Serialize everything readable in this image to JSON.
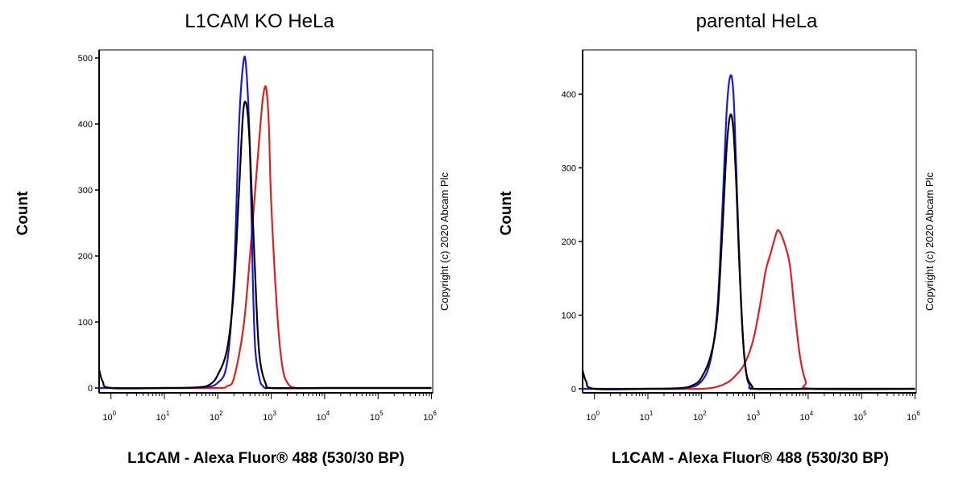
{
  "chart_data": [
    {
      "type": "line",
      "title": "L1CAM KO HeLa",
      "xlabel": "L1CAM - Alexa Fluor® 488 (530/30 BP)",
      "ylabel": "Count",
      "x_scale": "log",
      "xlim": [
        0.6,
        1000000
      ],
      "ylim": [
        0,
        520
      ],
      "xtick_labels": [
        "10^0",
        "10^1",
        "10^2",
        "10^3",
        "10^4",
        "10^5",
        "10^6"
      ],
      "ytick_labels": [
        "0",
        "100",
        "200",
        "300",
        "400",
        "500"
      ],
      "copyright": "Copyright (c) 2020 Abcam Plc",
      "colors": {
        "blue": "#1a1ad6",
        "black": "#000000",
        "red": "#e02020"
      },
      "series": [
        {
          "color": "#1a1ad6",
          "x": [
            0.6,
            10,
            50,
            100,
            150,
            200,
            250,
            300,
            340,
            400,
            450,
            500,
            600,
            700,
            1000,
            10000,
            1000000
          ],
          "y": [
            0,
            0,
            1,
            8,
            40,
            170,
            400,
            492,
            485,
            360,
            170,
            60,
            15,
            3,
            0,
            0,
            0
          ]
        },
        {
          "color": "#000000",
          "x": [
            0.6,
            0.7,
            1,
            10,
            40,
            70,
            100,
            150,
            200,
            250,
            300,
            350,
            400,
            500,
            600,
            800,
            1000,
            10000,
            1000000
          ],
          "y": [
            28,
            10,
            0,
            0,
            1,
            5,
            20,
            60,
            150,
            300,
            420,
            425,
            360,
            170,
            50,
            5,
            0,
            0,
            0
          ]
        },
        {
          "color": "#e02020",
          "x": [
            0.6,
            10,
            100,
            150,
            200,
            300,
            400,
            500,
            600,
            700,
            800,
            900,
            1000,
            1300,
            1600,
            2000,
            3000,
            10000,
            1000000
          ],
          "y": [
            0,
            0,
            0,
            3,
            15,
            90,
            200,
            300,
            380,
            440,
            455,
            400,
            280,
            110,
            35,
            8,
            0,
            0,
            0
          ]
        }
      ]
    },
    {
      "type": "line",
      "title": "parental HeLa",
      "xlabel": "L1CAM - Alexa Fluor® 488 (530/30 BP)",
      "ylabel": "Count",
      "x_scale": "log",
      "xlim": [
        0.6,
        1000000
      ],
      "ylim": [
        0,
        460
      ],
      "xtick_labels": [
        "10^0",
        "10^1",
        "10^2",
        "10^3",
        "10^4",
        "10^5",
        "10^6"
      ],
      "ytick_labels": [
        "0",
        "100",
        "200",
        "300",
        "400"
      ],
      "copyright": "Copyright (c) 2020 Abcam Plc",
      "colors": {
        "blue": "#1a1ad6",
        "black": "#000000",
        "red": "#e02020"
      },
      "series": [
        {
          "color": "#1a1ad6",
          "x": [
            0.6,
            10,
            50,
            100,
            150,
            200,
            250,
            300,
            350,
            400,
            450,
            500,
            600,
            700,
            800,
            1000,
            10000,
            1000000
          ],
          "y": [
            0,
            0,
            1,
            10,
            40,
            110,
            250,
            380,
            425,
            400,
            300,
            200,
            70,
            20,
            5,
            0,
            0,
            0
          ]
        },
        {
          "color": "#000000",
          "x": [
            0.6,
            0.7,
            1,
            10,
            40,
            70,
            100,
            150,
            200,
            250,
            300,
            350,
            400,
            450,
            500,
            600,
            700,
            900,
            1000,
            10000,
            1000000
          ],
          "y": [
            25,
            10,
            0,
            0,
            1,
            5,
            15,
            45,
            100,
            220,
            330,
            372,
            350,
            280,
            190,
            70,
            20,
            3,
            0,
            0,
            0
          ]
        },
        {
          "color": "#e02020",
          "x": [
            0.6,
            10,
            100,
            200,
            300,
            400,
            600,
            800,
            1000,
            1300,
            1600,
            2000,
            2500,
            2800,
            3500,
            4500,
            5500,
            7000,
            9000,
            12000,
            1000000
          ],
          "y": [
            0,
            0,
            0,
            3,
            8,
            15,
            30,
            50,
            75,
            120,
            160,
            185,
            210,
            215,
            200,
            170,
            110,
            45,
            10,
            0,
            0
          ]
        }
      ]
    }
  ]
}
